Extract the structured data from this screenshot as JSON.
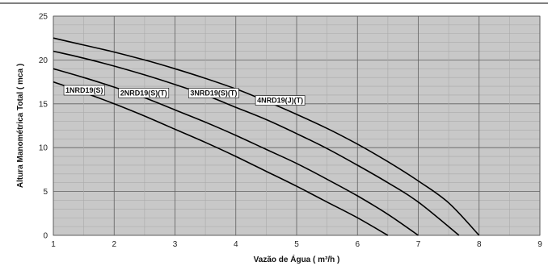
{
  "chart_data": {
    "type": "line",
    "title": "",
    "xlabel": "Vazão de Água ( m³/h )",
    "ylabel": "Altura Manométrica Total ( mca )",
    "xlim": [
      1,
      9
    ],
    "ylim": [
      0,
      25
    ],
    "x_ticks": [
      1,
      2,
      3,
      4,
      5,
      6,
      7,
      8,
      9
    ],
    "y_ticks": [
      0,
      5,
      10,
      15,
      20,
      25
    ],
    "x_minor_step": 0.5,
    "y_minor_step": 1,
    "grid": true,
    "colors": {
      "plot_background": "#c8c8c8",
      "grid_minor": "#aaaaaa",
      "grid_major": "#606060",
      "curve": "#000000",
      "top_rule": "#000000"
    },
    "series": [
      {
        "name": "1NRD19(S)",
        "x": [
          1,
          1.5,
          2,
          2.5,
          3,
          3.5,
          4,
          4.5,
          5,
          5.5,
          6,
          6.5
        ],
        "values": [
          17.5,
          16.3,
          15.0,
          13.6,
          12.1,
          10.6,
          9.0,
          7.3,
          5.6,
          3.8,
          2.0,
          0
        ]
      },
      {
        "name": "2NRD19(S)(T)",
        "x": [
          1,
          1.5,
          2,
          2.5,
          3,
          3.5,
          4,
          4.5,
          5,
          5.5,
          6,
          6.5,
          7
        ],
        "values": [
          19.0,
          18.0,
          16.9,
          15.7,
          14.3,
          12.9,
          11.4,
          9.8,
          8.2,
          6.4,
          4.5,
          2.4,
          0
        ]
      },
      {
        "name": "3NRD19(S)(T)",
        "x": [
          1,
          1.5,
          2,
          2.5,
          3,
          3.5,
          4,
          4.5,
          5,
          5.5,
          6,
          6.5,
          7,
          7.67
        ],
        "values": [
          21.0,
          20.2,
          19.3,
          18.3,
          17.2,
          16.0,
          14.6,
          13.2,
          11.6,
          9.9,
          8.0,
          6.0,
          3.8,
          0
        ]
      },
      {
        "name": "4NRD19(J)(T)",
        "x": [
          1,
          1.5,
          2,
          2.5,
          3,
          3.5,
          4,
          4.5,
          5,
          5.5,
          6,
          6.5,
          7,
          7.5,
          8
        ],
        "values": [
          22.5,
          21.7,
          20.9,
          20.0,
          19.0,
          17.9,
          16.7,
          15.3,
          13.8,
          12.2,
          10.4,
          8.4,
          6.2,
          3.7,
          0
        ]
      }
    ]
  }
}
